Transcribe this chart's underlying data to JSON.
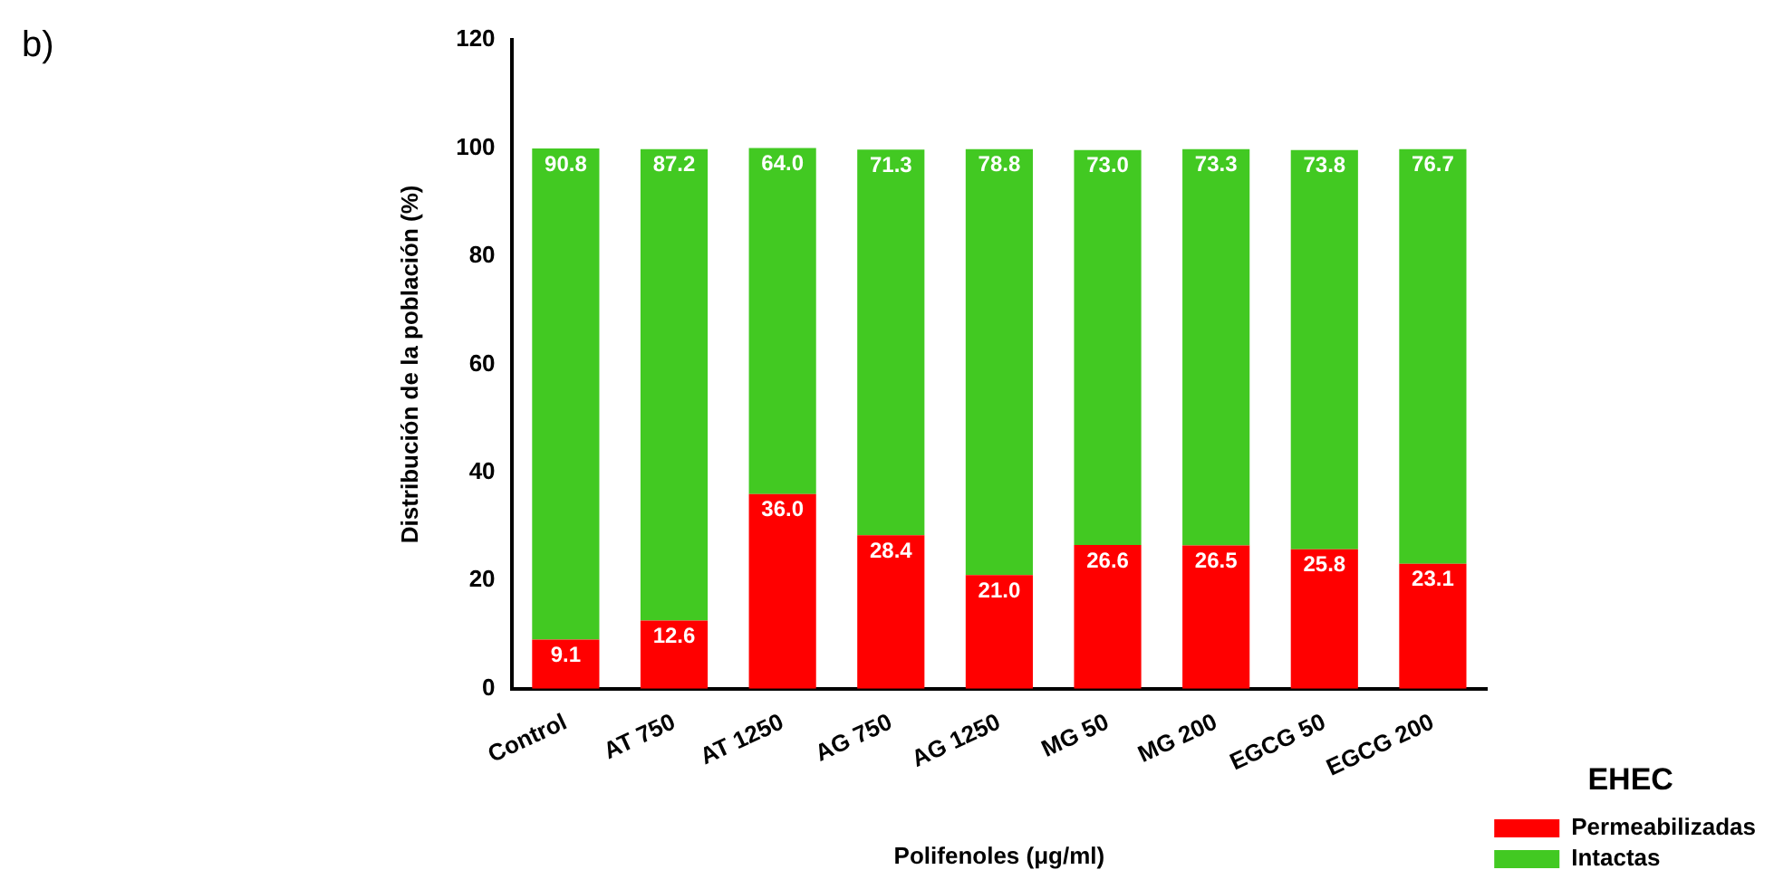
{
  "chart_data": {
    "type": "bar",
    "stacked": true,
    "xlabel": "Polifenoles (μg/ml)",
    "ylabel": "Distribución de la población (%)",
    "legend_title": "EHEC",
    "legend": "bottom right",
    "annotations": [
      "b)"
    ],
    "categories": [
      "Control",
      "AT 750",
      "AT 1250",
      "AG 750",
      "AG 1250",
      "MG 50",
      "MG 200",
      "EGCG 50",
      "EGCG 200"
    ],
    "series": [
      {
        "name": "Permeabilizadas",
        "color": "#ff0000",
        "values": [
          9.1,
          12.6,
          36.0,
          28.4,
          21.0,
          26.6,
          26.5,
          25.8,
          23.1
        ],
        "value_labels": [
          "9.1",
          "12.6",
          "36.0",
          "28.4",
          "21.0",
          "26.6",
          "26.5",
          "25.8",
          "23.1"
        ]
      },
      {
        "name": "Intactas",
        "color": "#42c922",
        "values": [
          90.8,
          87.2,
          64.0,
          71.3,
          78.8,
          73.0,
          73.3,
          73.8,
          76.7
        ],
        "value_labels": [
          "90.8",
          "87.2",
          "64.0",
          "71.3",
          "78.8",
          "73.0",
          "73.3",
          "73.8",
          "76.7"
        ]
      }
    ],
    "ylim": [
      0,
      120
    ],
    "yticks": [
      0,
      20,
      40,
      60,
      80,
      100,
      120
    ],
    "grid": false
  }
}
